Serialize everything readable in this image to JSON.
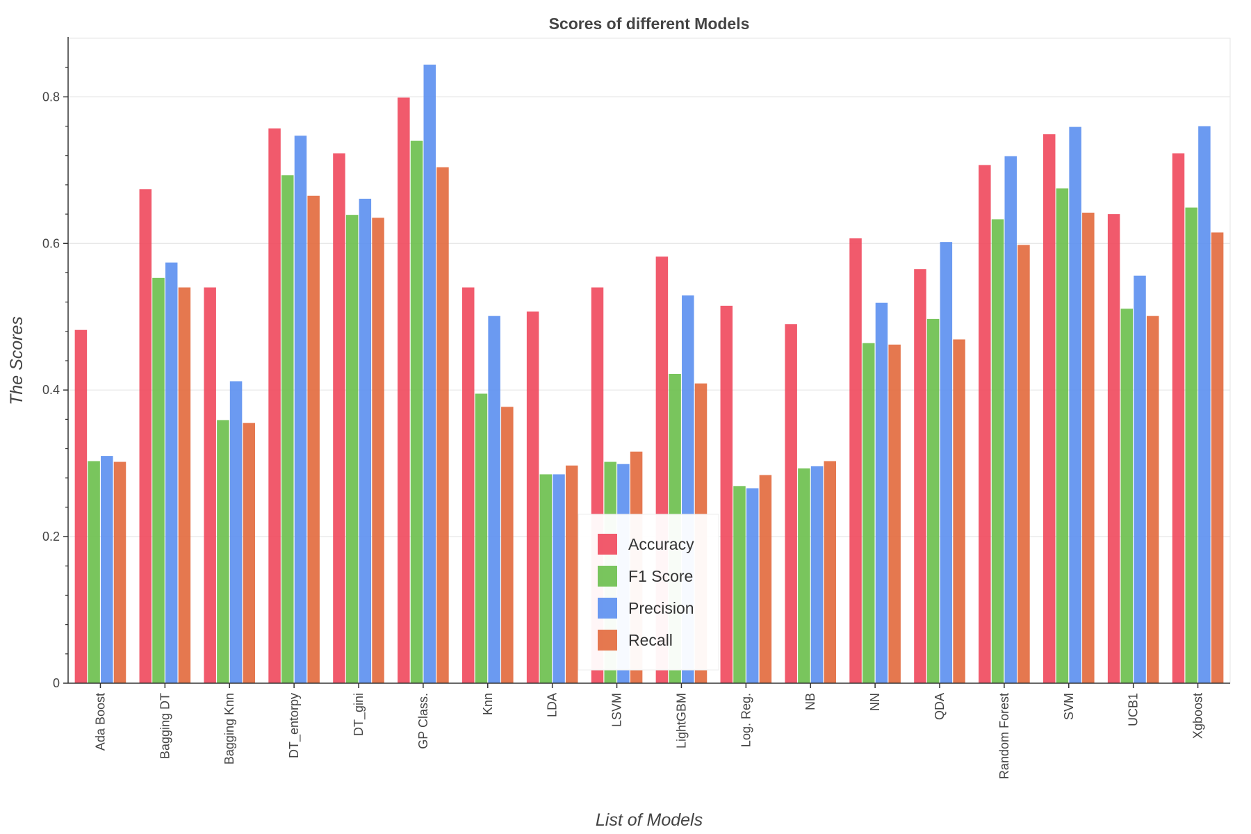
{
  "chart_data": {
    "type": "bar",
    "title": "Scores of different Models",
    "xlabel": "List of Models",
    "ylabel": "The Scores",
    "ylim": [
      0,
      0.88
    ],
    "yticks": [
      0,
      0.2,
      0.4,
      0.6,
      0.8
    ],
    "ytick_labels": [
      "0",
      "0.2",
      "0.4",
      "0.6",
      "0.8"
    ],
    "grid": true,
    "legend_position": "bottom-center",
    "categories": [
      "Ada Boost",
      "Bagging DT",
      "Bagging Knn",
      "DT_entorpy",
      "DT_gini",
      "GP Class.",
      "Knn",
      "LDA",
      "LSVM",
      "LightGBM",
      "Log. Reg.",
      "NB",
      "NN",
      "QDA",
      "Random Forest",
      "SVM",
      "UCB1",
      "Xgboost"
    ],
    "series": [
      {
        "name": "Accuracy",
        "color": "#f0485c",
        "values": [
          0.482,
          0.674,
          0.54,
          0.757,
          0.723,
          0.799,
          0.54,
          0.507,
          0.54,
          0.582,
          0.515,
          0.49,
          0.607,
          0.565,
          0.707,
          0.749,
          0.64,
          0.723
        ]
      },
      {
        "name": "F1 Score",
        "color": "#6abf4b",
        "values": [
          0.303,
          0.553,
          0.359,
          0.693,
          0.639,
          0.74,
          0.395,
          0.285,
          0.302,
          0.422,
          0.269,
          0.293,
          0.464,
          0.497,
          0.633,
          0.675,
          0.511,
          0.649
        ]
      },
      {
        "name": "Precision",
        "color": "#5b8ff0",
        "values": [
          0.31,
          0.574,
          0.412,
          0.747,
          0.661,
          0.844,
          0.501,
          0.285,
          0.299,
          0.529,
          0.266,
          0.296,
          0.519,
          0.602,
          0.719,
          0.759,
          0.556,
          0.76
        ]
      },
      {
        "name": "Recall",
        "color": "#e2693c",
        "values": [
          0.302,
          0.54,
          0.355,
          0.665,
          0.635,
          0.704,
          0.377,
          0.297,
          0.316,
          0.409,
          0.284,
          0.303,
          0.462,
          0.469,
          0.598,
          0.642,
          0.501,
          0.615
        ]
      }
    ]
  }
}
